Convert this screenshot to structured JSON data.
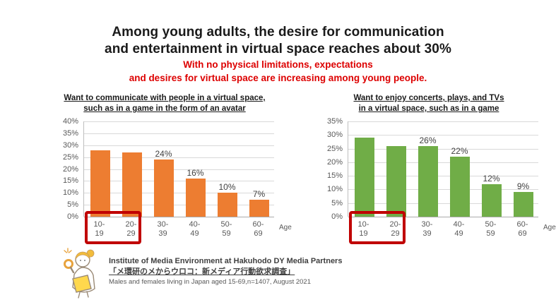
{
  "header": {
    "title_line1": "Among young adults, the desire for communication",
    "title_line2": "and entertainment in virtual space reaches about 30%",
    "subtitle_line1": "With no physical limitations, expectations",
    "subtitle_line2": "and desires for virtual space are increasing among young people."
  },
  "colors": {
    "title_text": "#1a1a1a",
    "subtitle_red": "#dd0000",
    "orange_bar": "#ED7D31",
    "green_bar": "#70AD47",
    "highlight_red": "#C00000",
    "gridline": "#D9D9D9",
    "axis_text": "#595959"
  },
  "chart_data": [
    {
      "type": "bar",
      "title_line1": "Want to communicate with people in a virtual space,",
      "title_line2": "such as in a game in the form of an avatar",
      "categories": [
        "10-19",
        "20-29",
        "30-39",
        "40-49",
        "50-59",
        "60-69"
      ],
      "categories_top": [
        "10-",
        "20-",
        "30-",
        "40-",
        "50-",
        "60-"
      ],
      "categories_bottom": [
        "19",
        "29",
        "39",
        "49",
        "59",
        "69"
      ],
      "values": [
        28,
        27,
        24,
        16,
        10,
        7
      ],
      "bar_labels": [
        "",
        "",
        "24%",
        "16%",
        "10%",
        "7%"
      ],
      "bar_color": "#ED7D31",
      "ylim": [
        0,
        40
      ],
      "ytick_step": 5,
      "yticks": [
        "0%",
        "5%",
        "10%",
        "15%",
        "20%",
        "25%",
        "30%",
        "35%",
        "40%"
      ],
      "xlabel": "Age",
      "grid": true,
      "legend": false,
      "highlight": {
        "start_index": 0,
        "count": 2,
        "color": "#C00000",
        "meaning": "young age groups emphasized"
      }
    },
    {
      "type": "bar",
      "title_line1": "Want to enjoy concerts, plays, and TVs",
      "title_line2": "in a virtual space, such as in a game",
      "categories": [
        "10-19",
        "20-29",
        "30-39",
        "40-49",
        "50-59",
        "60-69"
      ],
      "categories_top": [
        "10-",
        "20-",
        "30-",
        "40-",
        "50-",
        "60-"
      ],
      "categories_bottom": [
        "19",
        "29",
        "39",
        "49",
        "59",
        "69"
      ],
      "values": [
        29,
        26,
        26,
        22,
        12,
        9
      ],
      "bar_labels": [
        "",
        "",
        "26%",
        "22%",
        "12%",
        "9%"
      ],
      "bar_color": "#70AD47",
      "ylim": [
        0,
        35
      ],
      "ytick_step": 5,
      "yticks": [
        "0%",
        "5%",
        "10%",
        "15%",
        "20%",
        "25%",
        "30%",
        "35%"
      ],
      "xlabel": "Age",
      "grid": true,
      "legend": false,
      "highlight": {
        "start_index": 0,
        "count": 2,
        "color": "#C00000",
        "meaning": "young age groups emphasized"
      }
    }
  ],
  "footer": {
    "mascot": "researcher-with-magnifying-glass",
    "source_line1": "Institute of Media Environment at Hakuhodo DY Media Partners",
    "source_line2": "「メ環研のメからウロコ：新メディア行動欲求調査」",
    "source_line3": "Males and females living in Japan aged 15-69,n=1407, August 2021"
  }
}
